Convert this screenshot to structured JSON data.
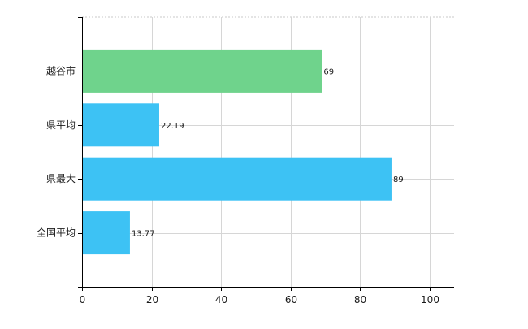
{
  "chart_data": {
    "type": "bar",
    "orientation": "horizontal",
    "categories": [
      "越谷市",
      "県平均",
      "県最大",
      "全国平均"
    ],
    "values": [
      69,
      22.19,
      89,
      13.77
    ],
    "data_labels": [
      "69",
      "22.19",
      "89",
      "13.77"
    ],
    "bar_colors": [
      "#6fd38c",
      "#3dc2f4",
      "#3dc2f4",
      "#3dc2f4"
    ],
    "xlim": [
      0,
      107
    ],
    "x_ticks": [
      0,
      20,
      40,
      60,
      80,
      100
    ],
    "x_tick_labels": [
      "0",
      "20",
      "40",
      "60",
      "80",
      "100"
    ],
    "grid": true,
    "title": "",
    "xlabel": "",
    "ylabel": ""
  }
}
